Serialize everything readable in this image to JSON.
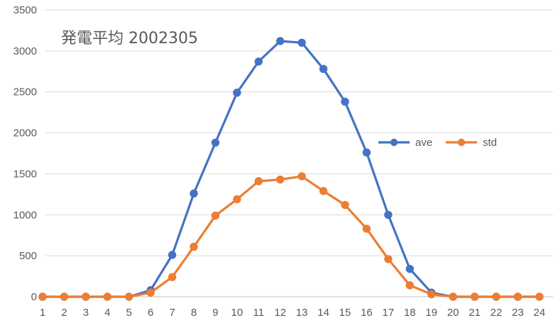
{
  "chart_data": {
    "type": "line",
    "title": "発電平均 2002305",
    "xlabel": "",
    "ylabel": "",
    "categories": [
      "1",
      "2",
      "3",
      "4",
      "5",
      "6",
      "7",
      "8",
      "9",
      "10",
      "11",
      "12",
      "13",
      "14",
      "15",
      "16",
      "17",
      "18",
      "19",
      "20",
      "21",
      "22",
      "23",
      "24"
    ],
    "ylim": [
      0,
      3500
    ],
    "yticks": [
      "0",
      "500",
      "1000",
      "1500",
      "2000",
      "2500",
      "3000",
      "3500"
    ],
    "grid": "horizontal",
    "legend_position": "right",
    "series": [
      {
        "name": "ave",
        "color": "#4472C4",
        "values": [
          0,
          0,
          0,
          0,
          0,
          80,
          510,
          1260,
          1880,
          2490,
          2870,
          3120,
          3100,
          2780,
          2380,
          1760,
          1000,
          340,
          50,
          0,
          0,
          0,
          0,
          0
        ]
      },
      {
        "name": "std",
        "color": "#ED7D31",
        "values": [
          0,
          0,
          0,
          0,
          0,
          50,
          240,
          610,
          990,
          1190,
          1410,
          1430,
          1470,
          1290,
          1120,
          830,
          460,
          140,
          30,
          0,
          0,
          0,
          0,
          0
        ]
      }
    ]
  }
}
